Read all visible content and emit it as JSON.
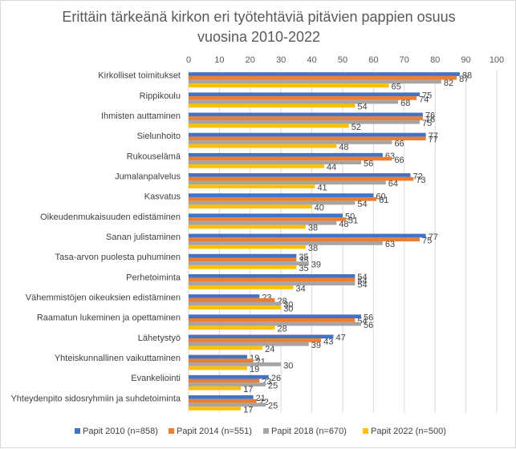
{
  "chart_data": {
    "type": "bar",
    "orientation": "horizontal",
    "title_lines": [
      "Erittäin tärkeänä kirkon eri työtehtäviä pitävien pappien osuus",
      "vuosina 2010-2022"
    ],
    "x_ticks": [
      "0",
      "10",
      "20",
      "30",
      "40",
      "50",
      "60",
      "70",
      "80",
      "90",
      "100"
    ],
    "xlim": [
      0,
      100
    ],
    "grid": true,
    "legend_position": "bottom",
    "categories": [
      "Kirkolliset toimitukset",
      "Rippikoulu",
      "Ihmisten auttaminen",
      "Sielunhoito",
      "Rukouselämä",
      "Jumalanpalvelus",
      "Kasvatus",
      "Oikeudenmukaisuuden edistäminen",
      "Sanan julistaminen",
      "Tasa-arvon puolesta puhuminen",
      "Perhetoiminta",
      "Vähemmistöjen oikeuksien edistäminen",
      "Raamatun lukeminen ja opettaminen",
      "Lähetystyö",
      "Yhteiskunnallinen vaikuttaminen",
      "Evankeliointi",
      "Yhteydenpito sidosryhmiin ja suhdetoiminta"
    ],
    "series": [
      {
        "name": "Papit 2010 (n=858)",
        "color": "#4472c4",
        "values": [
          88,
          75,
          76,
          77,
          63,
          72,
          60,
          50,
          77,
          35,
          54,
          23,
          56,
          47,
          19,
          26,
          21
        ]
      },
      {
        "name": "Papit 2014 (n=551)",
        "color": "#ed7d31",
        "values": [
          87,
          74,
          76,
          77,
          66,
          73,
          61,
          51,
          75,
          35,
          54,
          28,
          54,
          43,
          21,
          23,
          22
        ]
      },
      {
        "name": "Papit 2018 (n=670)",
        "color": "#a5a5a5",
        "values": [
          82,
          68,
          75,
          66,
          56,
          64,
          54,
          48,
          63,
          39,
          54,
          30,
          56,
          39,
          30,
          25,
          25
        ]
      },
      {
        "name": "Papit 2022 (n=500)",
        "color": "#ffc000",
        "values": [
          65,
          54,
          52,
          48,
          44,
          41,
          40,
          38,
          38,
          35,
          34,
          30,
          28,
          24,
          19,
          17,
          17
        ]
      }
    ]
  }
}
